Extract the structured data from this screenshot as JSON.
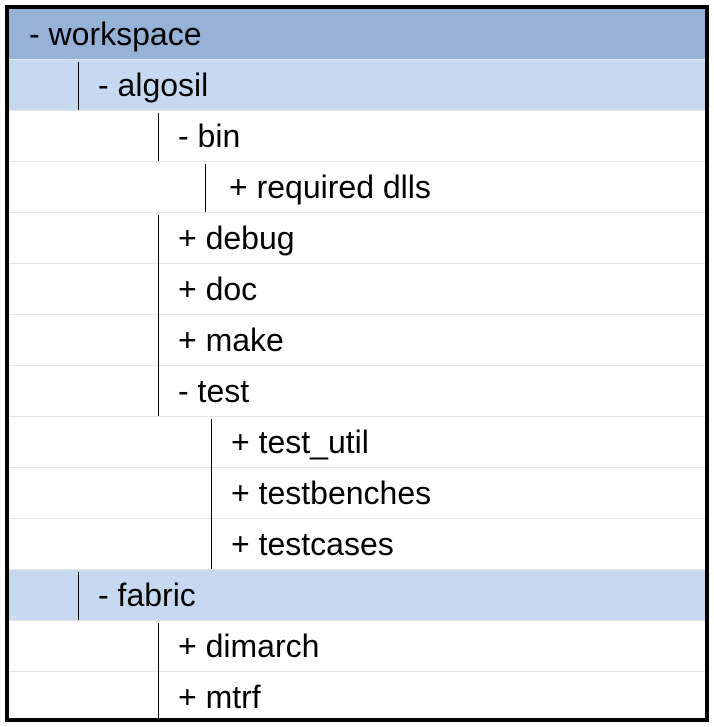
{
  "colors": {
    "border": "#000000",
    "root_row": "#95b3d7",
    "project_row": "#c5d9f1",
    "row_separator": "#e6e6e6",
    "background": "#ffffff"
  },
  "tree": {
    "rows": [
      {
        "id": "workspace",
        "label": "- workspace"
      },
      {
        "id": "algosil",
        "label": "- algosil"
      },
      {
        "id": "bin",
        "label": "- bin"
      },
      {
        "id": "required-dlls",
        "label": "+ required dlls"
      },
      {
        "id": "debug",
        "label": "+ debug"
      },
      {
        "id": "doc",
        "label": "+ doc"
      },
      {
        "id": "make",
        "label": "+ make"
      },
      {
        "id": "test",
        "label": "- test"
      },
      {
        "id": "test-util",
        "label": "+ test_util"
      },
      {
        "id": "testbenches",
        "label": "+ testbenches"
      },
      {
        "id": "testcases",
        "label": "+ testcases"
      },
      {
        "id": "fabric",
        "label": "- fabric"
      },
      {
        "id": "dimarch",
        "label": "+ dimarch"
      },
      {
        "id": "mtrf",
        "label": "+ mtrf"
      }
    ]
  }
}
